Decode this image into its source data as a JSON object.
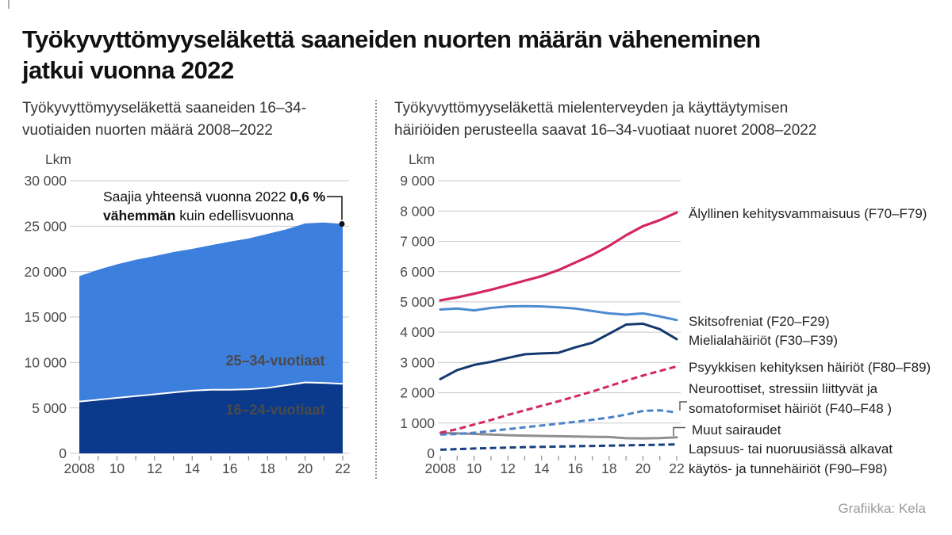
{
  "title_lines": [
    "Työkyvyttömyyseläkettä saaneiden nuorten määrän väheneminen",
    "jatkui vuonna 2022"
  ],
  "credit": "Grafiikka: Kela",
  "chart_data": [
    {
      "type": "area",
      "stacked": true,
      "title_lines": [
        "Työkyvyttömyyseläkettä saaneiden 16–34-",
        "vuotiaiden nuorten määrä 2008–2022"
      ],
      "ylabel": "Lkm",
      "x": [
        2008,
        2009,
        2010,
        2011,
        2012,
        2013,
        2014,
        2015,
        2016,
        2017,
        2018,
        2019,
        2020,
        2021,
        2022
      ],
      "xtick_labels": [
        "2008",
        "10",
        "12",
        "14",
        "16",
        "18",
        "20",
        "22"
      ],
      "ylim": [
        0,
        30000
      ],
      "yticks": [
        0,
        5000,
        10000,
        15000,
        20000,
        25000,
        30000
      ],
      "ytick_labels": [
        "0",
        "5 000",
        "10 000",
        "15 000",
        "20 000",
        "25 000",
        "30 000"
      ],
      "grid": true,
      "series": [
        {
          "id": "y16_24",
          "name": "16–24-vuotiaat",
          "color": "#0b3a8c",
          "label_color": "#ffffff",
          "values": [
            5700,
            5900,
            6100,
            6300,
            6500,
            6700,
            6900,
            7000,
            7000,
            7050,
            7200,
            7500,
            7800,
            7750,
            7650
          ]
        },
        {
          "id": "y25_34",
          "name": "25–34-vuotiaat",
          "color": "#3d7fdc",
          "label_color": "#0b3a8c",
          "values": [
            13800,
            14300,
            14700,
            15000,
            15200,
            15450,
            15600,
            15900,
            16300,
            16600,
            16950,
            17150,
            17500,
            17650,
            17600
          ]
        }
      ],
      "totals_2022_note": 25250,
      "annotation": {
        "line1_normal": "Saajia yhteensä vuonna 2022 ",
        "line1_bold": "0,6 %",
        "line2_bold": "vähemmän",
        "line2_normal": " kuin edellisvuonna"
      }
    },
    {
      "type": "line",
      "title_lines": [
        "Työkyvyttömyyseläkettä mielenterveyden ja käyttäytymisen",
        "häiriöiden perusteella saavat 16–34-vuotiaat nuoret 2008–2022"
      ],
      "ylabel": "Lkm",
      "x": [
        2008,
        2009,
        2010,
        2011,
        2012,
        2013,
        2014,
        2015,
        2016,
        2017,
        2018,
        2019,
        2020,
        2021,
        2022
      ],
      "xtick_labels": [
        "2008",
        "10",
        "12",
        "14",
        "16",
        "18",
        "20",
        "22"
      ],
      "ylim": [
        0,
        9000
      ],
      "yticks": [
        0,
        1000,
        2000,
        3000,
        4000,
        5000,
        6000,
        7000,
        8000,
        9000
      ],
      "ytick_labels": [
        "0",
        "1 000",
        "2 000",
        "3 000",
        "4 000",
        "5 000",
        "6 000",
        "7 000",
        "8 000",
        "9 000"
      ],
      "grid": true,
      "legend_position": "right",
      "series": [
        {
          "id": "alyllinen",
          "label_lines": [
            "Älyllinen kehitysvammaisuus (F70–F79)"
          ],
          "color": "#d4275d",
          "dash": false,
          "values": [
            5050,
            5150,
            5270,
            5400,
            5550,
            5700,
            5850,
            6050,
            6300,
            6550,
            6850,
            7200,
            7500,
            7700,
            7950
          ]
        },
        {
          "id": "skitsofreniat",
          "label_lines": [
            "Skitsofreniat (F20–F29)"
          ],
          "color": "#4d8bd1",
          "dash": false,
          "values": [
            4750,
            4780,
            4720,
            4800,
            4850,
            4860,
            4850,
            4820,
            4780,
            4700,
            4620,
            4580,
            4620,
            4520,
            4400
          ]
        },
        {
          "id": "mieliala",
          "label_lines": [
            "Mielialahäiriöt (F30–F39)"
          ],
          "color": "#14386f",
          "dash": false,
          "values": [
            2450,
            2750,
            2920,
            3020,
            3150,
            3270,
            3300,
            3320,
            3500,
            3650,
            3950,
            4250,
            4280,
            4100,
            3770
          ]
        },
        {
          "id": "psyykkisen",
          "label_lines": [
            "Psyykkisen kehityksen häiriöt (F80–F89)"
          ],
          "color": "#d4275d",
          "dash": true,
          "values": [
            680,
            800,
            950,
            1100,
            1270,
            1420,
            1570,
            1720,
            1880,
            2040,
            2220,
            2400,
            2570,
            2720,
            2870
          ]
        },
        {
          "id": "neuroottiset",
          "label_lines": [
            "Neuroottiset, stressiin liittyvät ja",
            "somatoformiset häiriöt (F40–F48 )"
          ],
          "color": "#4b82c8",
          "dash": true,
          "values": [
            620,
            640,
            680,
            740,
            800,
            860,
            920,
            980,
            1040,
            1110,
            1180,
            1280,
            1400,
            1420,
            1350
          ]
        },
        {
          "id": "muut",
          "label_lines": [
            "Muut sairaudet"
          ],
          "color": "#8f8f8f",
          "dash": false,
          "values": [
            670,
            660,
            640,
            620,
            600,
            585,
            575,
            565,
            555,
            545,
            540,
            500,
            495,
            505,
            530
          ]
        },
        {
          "id": "lapsuus",
          "label_lines": [
            "Lapsuus- tai nuoruusiässä alkavat",
            "käytös- ja tunnehäiriöt (F90–F98)"
          ],
          "color": "#17407e",
          "dash": true,
          "values": [
            120,
            140,
            160,
            175,
            190,
            205,
            215,
            225,
            235,
            245,
            255,
            265,
            275,
            285,
            295
          ]
        }
      ]
    }
  ]
}
